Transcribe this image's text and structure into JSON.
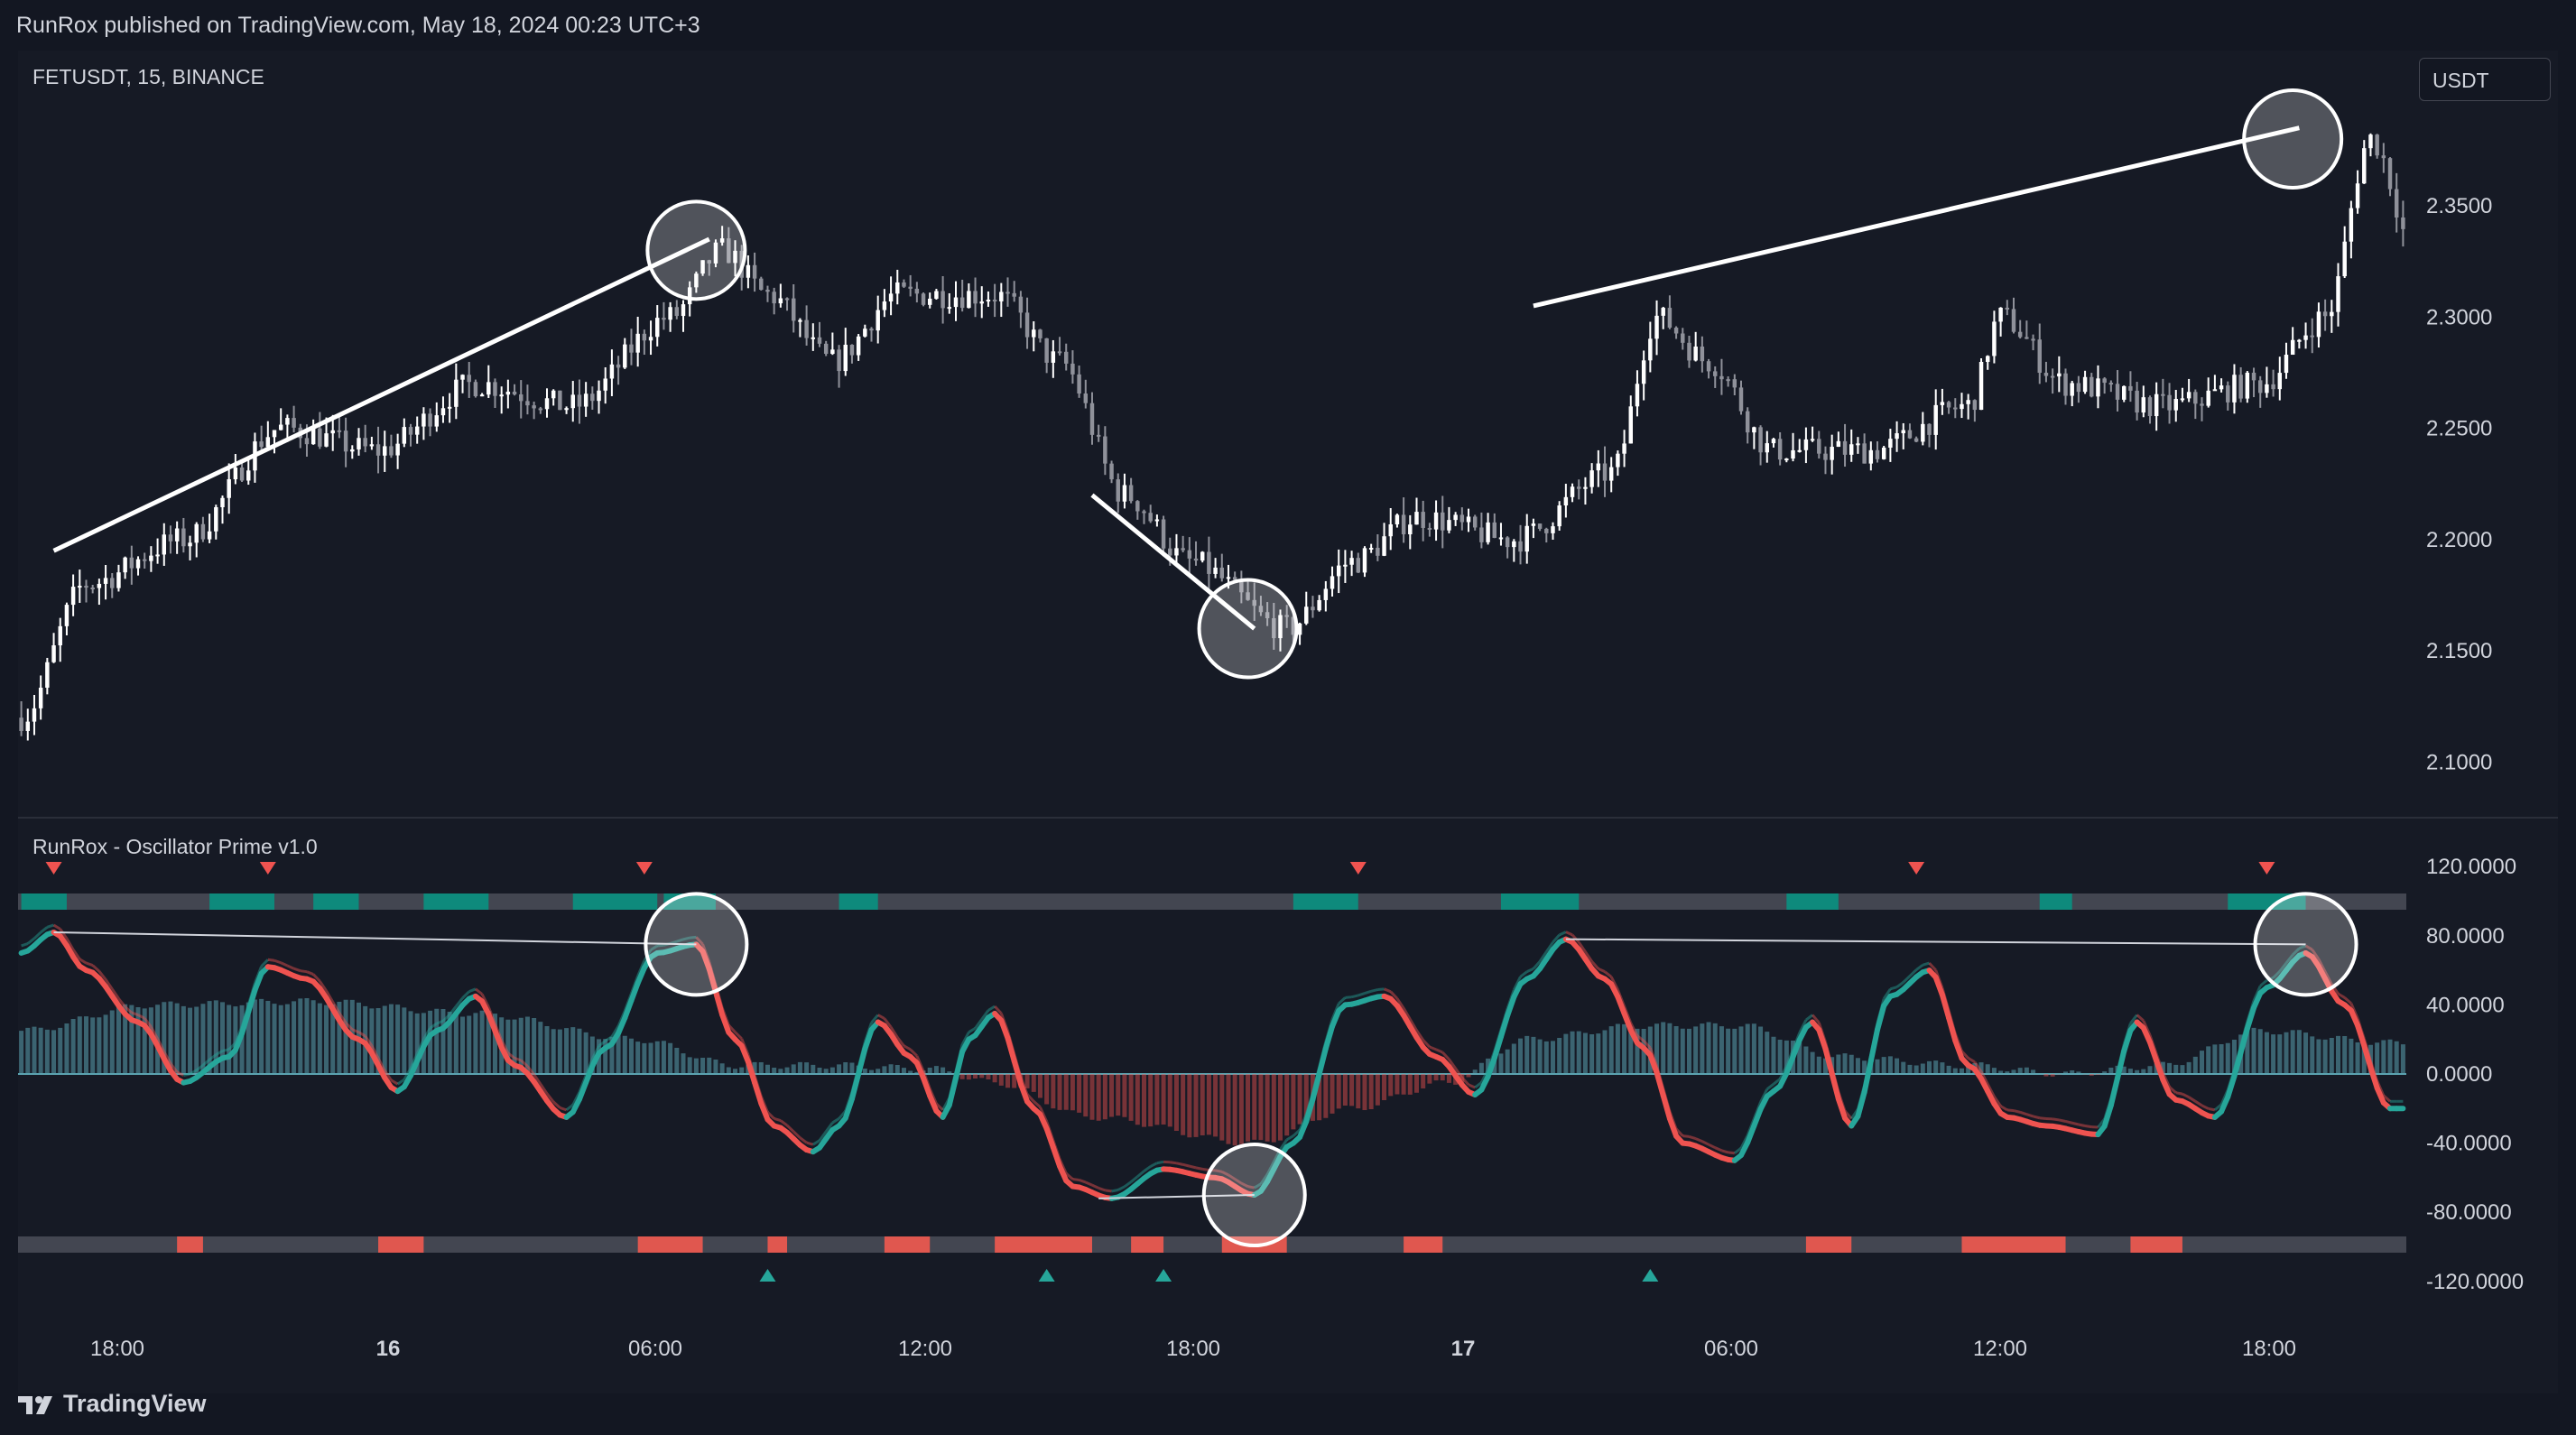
{
  "header": {
    "published": "RunRox published on TradingView.com, May 18, 2024 00:23 UTC+3"
  },
  "symbol_label": "FETUSDT, 15, BINANCE",
  "currency_button": "USDT",
  "indicator_label": "RunRox - Oscillator Prime v1.0",
  "footer": {
    "logo_text": "TradingView",
    "logo_icon": "tradingview-logo-icon"
  },
  "colors": {
    "background": "#131722",
    "candle_up": "#ffffff",
    "candle_down": "#8f919a",
    "osc_bull": "#26a69a",
    "osc_bear": "#ef5350",
    "band_teal": "#5ba3b0",
    "strip_gray": "#434651"
  },
  "chart_data": [
    {
      "type": "candlestick",
      "title": "FETUSDT, 15, BINANCE",
      "y_ticks": [
        "2.3500",
        "2.3000",
        "2.2500",
        "2.2000",
        "2.1500",
        "2.1000"
      ],
      "ylim": [
        2.08,
        2.41
      ],
      "x_ticks": [
        {
          "label": "18:00",
          "bold": false
        },
        {
          "label": "16",
          "bold": true
        },
        {
          "label": "06:00",
          "bold": false
        },
        {
          "label": "12:00",
          "bold": false
        },
        {
          "label": "18:00",
          "bold": false
        },
        {
          "label": "17",
          "bold": true
        },
        {
          "label": "06:00",
          "bold": false
        },
        {
          "label": "12:00",
          "bold": false
        },
        {
          "label": "18:00",
          "bold": false
        }
      ],
      "price_path_anchors": [
        [
          0,
          2.12
        ],
        [
          10,
          2.18
        ],
        [
          25,
          2.2
        ],
        [
          40,
          2.25
        ],
        [
          55,
          2.24
        ],
        [
          70,
          2.27
        ],
        [
          85,
          2.26
        ],
        [
          100,
          2.3
        ],
        [
          108,
          2.33
        ],
        [
          115,
          2.31
        ],
        [
          125,
          2.28
        ],
        [
          135,
          2.31
        ],
        [
          150,
          2.31
        ],
        [
          160,
          2.28
        ],
        [
          170,
          2.22
        ],
        [
          180,
          2.19
        ],
        [
          195,
          2.16
        ],
        [
          205,
          2.19
        ],
        [
          215,
          2.21
        ],
        [
          230,
          2.2
        ],
        [
          245,
          2.23
        ],
        [
          252,
          2.3
        ],
        [
          260,
          2.28
        ],
        [
          270,
          2.24
        ],
        [
          285,
          2.24
        ],
        [
          300,
          2.26
        ],
        [
          305,
          2.3
        ],
        [
          315,
          2.27
        ],
        [
          330,
          2.26
        ],
        [
          345,
          2.27
        ],
        [
          355,
          2.3
        ],
        [
          362,
          2.38
        ],
        [
          370,
          2.32
        ]
      ],
      "annotations": {
        "trendlines": [
          {
            "from": [
              5,
              2.195
            ],
            "to": [
              106,
              2.335
            ]
          },
          {
            "from": [
              165,
              2.22
            ],
            "to": [
              190,
              2.16
            ]
          },
          {
            "from": [
              233,
              2.305
            ],
            "to": [
              351,
              2.385
            ]
          }
        ],
        "circles": [
          {
            "x": 104,
            "y": 2.33
          },
          {
            "x": 189,
            "y": 2.16
          },
          {
            "x": 350,
            "y": 2.38
          }
        ]
      }
    },
    {
      "type": "line",
      "title": "RunRox - Oscillator Prime v1.0",
      "y_ticks": [
        "120.0000",
        "80.0000",
        "40.0000",
        "0.0000",
        "-40.0000",
        "-80.0000",
        "-120.0000"
      ],
      "ylim": [
        -135,
        135
      ],
      "oscillator_anchors": [
        [
          0,
          70
        ],
        [
          5,
          82
        ],
        [
          10,
          60
        ],
        [
          18,
          30
        ],
        [
          25,
          -5
        ],
        [
          32,
          10
        ],
        [
          38,
          62
        ],
        [
          44,
          55
        ],
        [
          52,
          20
        ],
        [
          58,
          -10
        ],
        [
          64,
          25
        ],
        [
          70,
          45
        ],
        [
          76,
          5
        ],
        [
          84,
          -25
        ],
        [
          90,
          15
        ],
        [
          98,
          70
        ],
        [
          104,
          75
        ],
        [
          110,
          20
        ],
        [
          116,
          -30
        ],
        [
          122,
          -45
        ],
        [
          126,
          -30
        ],
        [
          132,
          30
        ],
        [
          137,
          10
        ],
        [
          142,
          -25
        ],
        [
          146,
          20
        ],
        [
          150,
          35
        ],
        [
          156,
          -20
        ],
        [
          162,
          -65
        ],
        [
          168,
          -72
        ],
        [
          176,
          -55
        ],
        [
          184,
          -60
        ],
        [
          190,
          -70
        ],
        [
          196,
          -40
        ],
        [
          204,
          40
        ],
        [
          210,
          45
        ],
        [
          218,
          10
        ],
        [
          224,
          -12
        ],
        [
          232,
          55
        ],
        [
          238,
          78
        ],
        [
          244,
          55
        ],
        [
          250,
          15
        ],
        [
          256,
          -40
        ],
        [
          264,
          -50
        ],
        [
          270,
          -10
        ],
        [
          276,
          30
        ],
        [
          282,
          -30
        ],
        [
          288,
          45
        ],
        [
          294,
          60
        ],
        [
          300,
          5
        ],
        [
          306,
          -25
        ],
        [
          312,
          -30
        ],
        [
          320,
          -35
        ],
        [
          326,
          30
        ],
        [
          332,
          -15
        ],
        [
          338,
          -25
        ],
        [
          346,
          50
        ],
        [
          352,
          70
        ],
        [
          358,
          40
        ],
        [
          365,
          -20
        ]
      ],
      "band_anchors": [
        [
          0,
          25
        ],
        [
          20,
          40
        ],
        [
          45,
          42
        ],
        [
          70,
          35
        ],
        [
          95,
          20
        ],
        [
          110,
          5
        ],
        [
          125,
          5
        ],
        [
          140,
          3
        ],
        [
          150,
          -5
        ],
        [
          165,
          -25
        ],
        [
          190,
          -40
        ],
        [
          205,
          -20
        ],
        [
          220,
          -5
        ],
        [
          232,
          20
        ],
        [
          250,
          28
        ],
        [
          265,
          28
        ],
        [
          280,
          10
        ],
        [
          300,
          5
        ],
        [
          315,
          0
        ],
        [
          330,
          5
        ],
        [
          345,
          25
        ],
        [
          365,
          18
        ]
      ],
      "divergence_lines": [
        {
          "from": [
            5,
            82
          ],
          "to": [
            104,
            75
          ]
        },
        {
          "from": [
            166,
            -72
          ],
          "to": [
            190,
            -70
          ]
        },
        {
          "from": [
            238,
            78
          ],
          "to": [
            352,
            75
          ]
        }
      ],
      "circles": [
        {
          "x": 104,
          "y": 75
        },
        {
          "x": 190,
          "y": -70
        },
        {
          "x": 352,
          "y": 75
        }
      ],
      "top_strip_teal_ranges": [
        [
          0,
          7
        ],
        [
          29,
          39
        ],
        [
          45,
          52
        ],
        [
          62,
          72
        ],
        [
          85,
          98
        ],
        [
          99,
          107
        ],
        [
          126,
          132
        ],
        [
          196,
          206
        ],
        [
          228,
          240
        ],
        [
          272,
          280
        ],
        [
          311,
          316
        ],
        [
          340,
          352
        ]
      ],
      "bottom_strip_red_ranges": [
        [
          24,
          28
        ],
        [
          55,
          62
        ],
        [
          95,
          105
        ],
        [
          115,
          118
        ],
        [
          133,
          140
        ],
        [
          150,
          165
        ],
        [
          171,
          176
        ],
        [
          185,
          195
        ],
        [
          213,
          219
        ],
        [
          275,
          282
        ],
        [
          299,
          315
        ],
        [
          325,
          333
        ]
      ],
      "sell_markers_x": [
        5,
        38,
        96,
        206,
        292,
        346
      ],
      "buy_markers_x": [
        115,
        158,
        176,
        251
      ]
    }
  ]
}
